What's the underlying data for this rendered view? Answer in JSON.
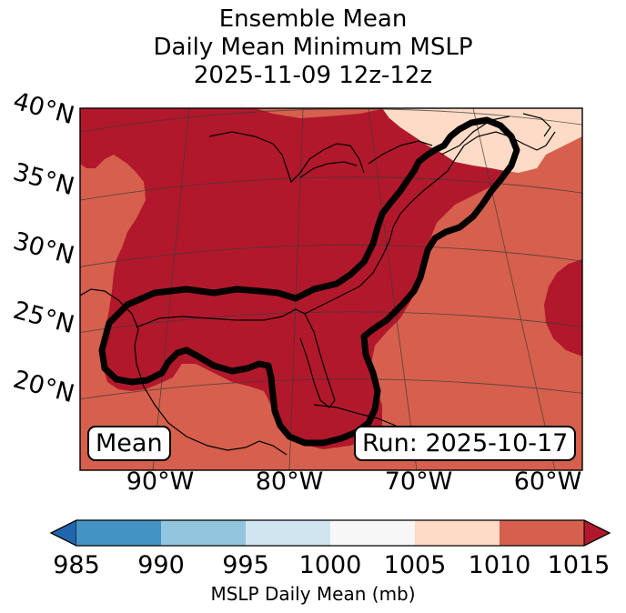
{
  "title": {
    "line1": "Ensemble Mean",
    "line2": "Daily Mean Minimum MSLP",
    "line3": "2025-11-09 12z-12z"
  },
  "map": {
    "lat_labels": [
      "40°N",
      "35°N",
      "30°N",
      "25°N",
      "20°N"
    ],
    "lon_labels": [
      "90°W",
      "80°W",
      "70°W",
      "60°W"
    ],
    "mean_label": "Mean",
    "run_label": "Run: 2025-10-17",
    "fill_colors": {
      "below_1010": "#b2182b",
      "1010_1015": "#d6604d",
      "1005_1010": "#fddbc7"
    },
    "contour_color": "#000000"
  },
  "colorbar": {
    "ticks": [
      "985",
      "990",
      "995",
      "1000",
      "1005",
      "1010",
      "1015"
    ],
    "colors": [
      "#2166ac",
      "#4393c3",
      "#92c5de",
      "#d1e5f0",
      "#f7f7f7",
      "#fddbc7",
      "#d6604d",
      "#b2182b"
    ],
    "label": "MSLP Daily Mean (mb)"
  }
}
